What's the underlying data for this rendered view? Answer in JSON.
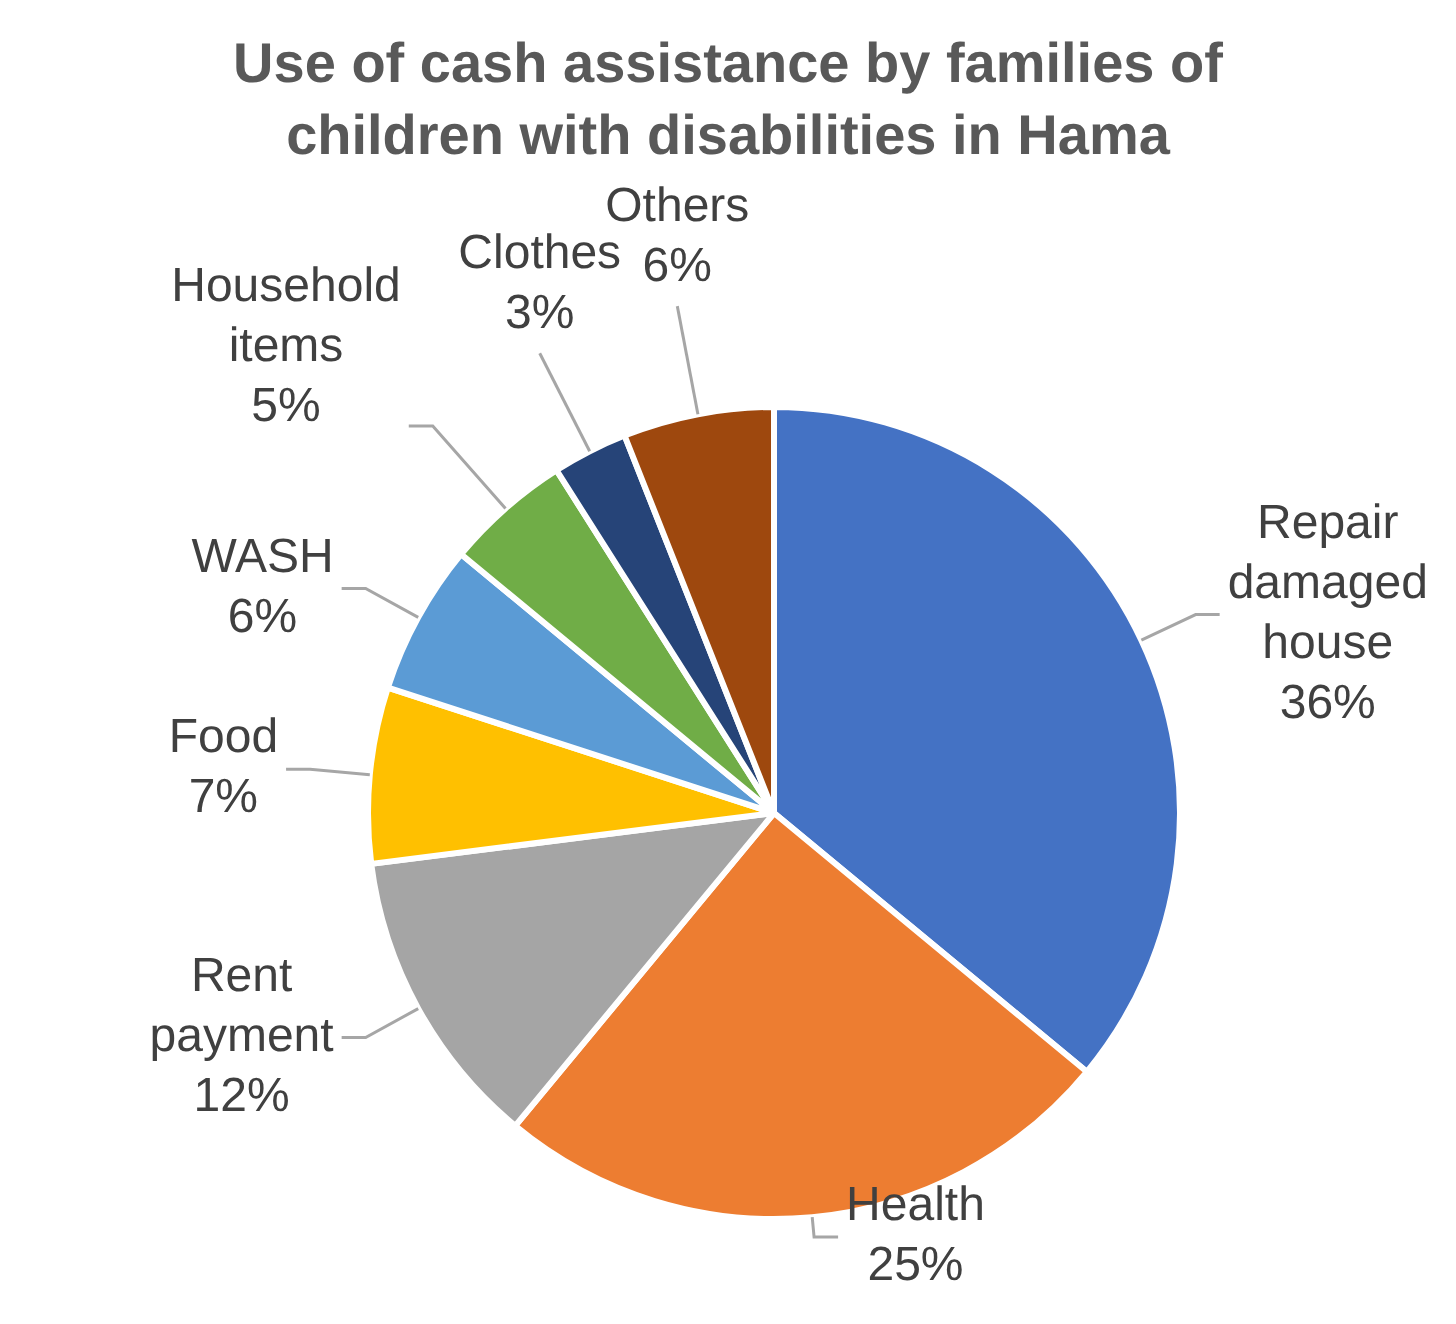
{
  "chart_data": {
    "type": "pie",
    "title": "Use of cash assistance by families of children with disabilities in Hama",
    "categories": [
      "Repair damaged house",
      "Health",
      "Rent payment",
      "Food",
      "WASH",
      "Household items",
      "Clothes",
      "Others"
    ],
    "values": [
      36,
      25,
      12,
      7,
      6,
      5,
      3,
      6
    ],
    "colors": [
      "#4472c4",
      "#ed7d31",
      "#a5a5a5",
      "#ffc000",
      "#5b9bd5",
      "#70ad47",
      "#264478",
      "#9e480e"
    ],
    "value_labels": [
      "36%",
      "25%",
      "12%",
      "7%",
      "6%",
      "5%",
      "3%",
      "6%"
    ],
    "legend": false
  }
}
